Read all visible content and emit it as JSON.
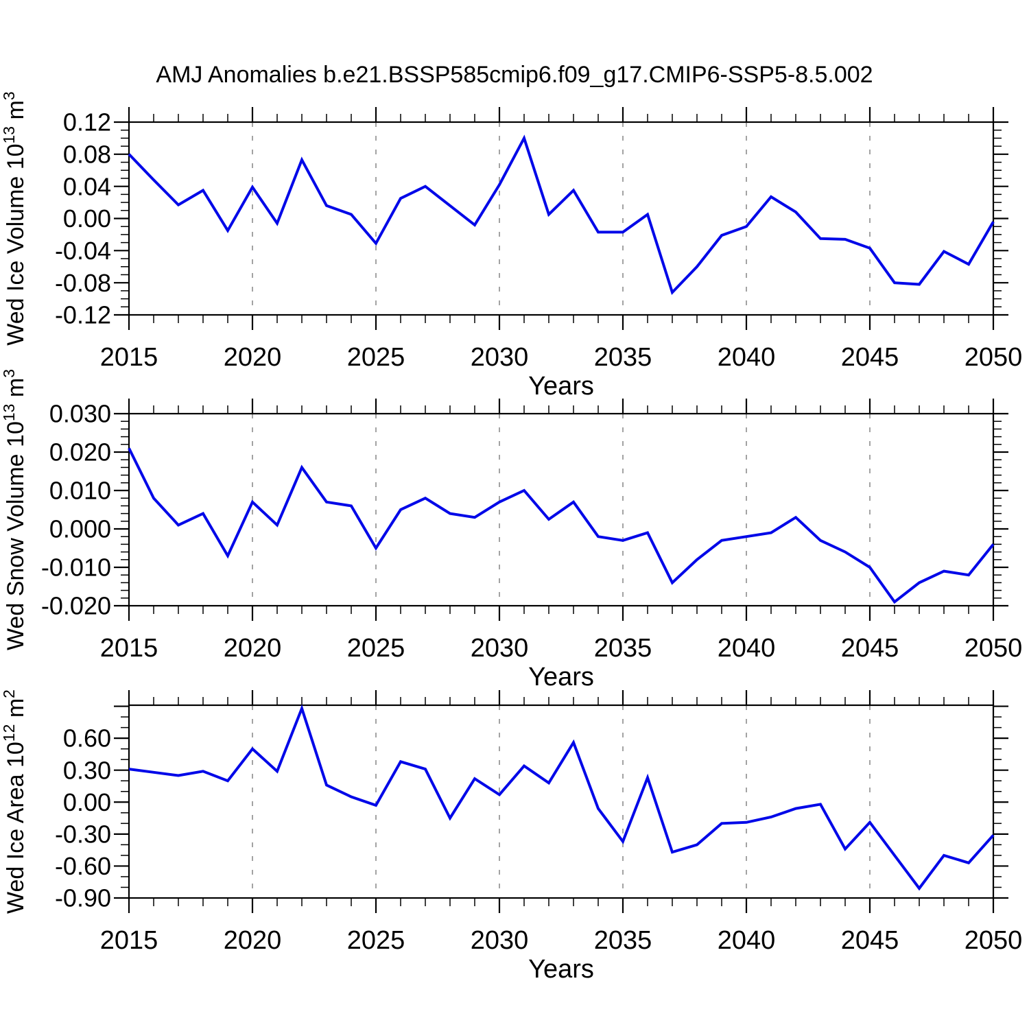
{
  "chart_data": {
    "type": "line",
    "title": "AMJ Anomalies b.e21.BSSP585cmip6.f09_g17.CMIP6-SSP5-8.5.002",
    "xlabel": "Years",
    "x": [
      2015,
      2016,
      2017,
      2018,
      2019,
      2020,
      2021,
      2022,
      2023,
      2024,
      2025,
      2026,
      2027,
      2028,
      2029,
      2030,
      2031,
      2032,
      2033,
      2034,
      2035,
      2036,
      2037,
      2038,
      2039,
      2040,
      2041,
      2042,
      2043,
      2044,
      2045,
      2046,
      2047,
      2048,
      2049,
      2050
    ],
    "xlim": [
      2015,
      2050
    ],
    "x_major_ticks": [
      2015,
      2020,
      2025,
      2030,
      2035,
      2040,
      2045,
      2050
    ],
    "x_gridlines": [
      2020,
      2025,
      2030,
      2035,
      2040,
      2045
    ],
    "line_color": "#0008e8",
    "grid_color": "#999999",
    "axis_color": "#000000",
    "panels": [
      {
        "name": "wed-ice-volume",
        "ylabel_parts": [
          {
            "t": "Wed Ice Volume 10"
          },
          {
            "t": "13",
            "sup": true
          },
          {
            "t": " m"
          },
          {
            "t": "3",
            "sup": true
          }
        ],
        "ylim": [
          -0.12,
          0.12
        ],
        "ytick_major": 0.04,
        "ytick_minor": 0.01,
        "y_decimals": 2,
        "ytick_labels": [
          0.12,
          0.08,
          0.04,
          0.0,
          -0.04,
          -0.08,
          -0.12
        ],
        "values": [
          0.08,
          0.048,
          0.017,
          0.035,
          -0.015,
          0.039,
          -0.006,
          0.073,
          0.016,
          0.005,
          -0.031,
          0.025,
          0.04,
          0.016,
          -0.008,
          0.042,
          0.1,
          0.005,
          0.035,
          -0.017,
          -0.017,
          0.005,
          -0.092,
          -0.06,
          -0.021,
          -0.01,
          0.027,
          0.008,
          -0.025,
          -0.026,
          -0.037,
          -0.08,
          -0.082,
          -0.041,
          -0.057,
          -0.004
        ]
      },
      {
        "name": "wed-snow-volume",
        "ylabel_parts": [
          {
            "t": "Wed Snow Volume 10"
          },
          {
            "t": "13",
            "sup": true
          },
          {
            "t": " m"
          },
          {
            "t": "3",
            "sup": true
          }
        ],
        "ylim": [
          -0.02,
          0.03
        ],
        "ytick_major": 0.01,
        "ytick_minor": 0.002,
        "y_decimals": 3,
        "ytick_labels": [
          0.03,
          0.02,
          0.01,
          0.0,
          -0.01,
          -0.02
        ],
        "values": [
          0.021,
          0.008,
          0.001,
          0.004,
          -0.007,
          0.007,
          0.001,
          0.016,
          0.007,
          0.006,
          -0.005,
          0.005,
          0.008,
          0.004,
          0.003,
          0.007,
          0.01,
          0.0025,
          0.007,
          -0.002,
          -0.003,
          -0.001,
          -0.014,
          -0.008,
          -0.003,
          -0.002,
          -0.001,
          0.003,
          -0.003,
          -0.006,
          -0.01,
          -0.019,
          -0.014,
          -0.011,
          -0.012,
          -0.004
        ]
      },
      {
        "name": "wed-ice-area",
        "ylabel_parts": [
          {
            "t": "Wed Ice Area 10"
          },
          {
            "t": "12",
            "sup": true
          },
          {
            "t": " m"
          },
          {
            "t": "2",
            "sup": true
          }
        ],
        "ylim": [
          -0.9,
          0.91
        ],
        "ytick_major": 0.3,
        "ytick_minor": 0.1,
        "y_decimals": 2,
        "ytick_labels": [
          0.6,
          0.3,
          0.0,
          -0.3,
          -0.6,
          -0.9
        ],
        "values": [
          0.31,
          0.28,
          0.25,
          0.29,
          0.2,
          0.5,
          0.29,
          0.88,
          0.16,
          0.05,
          -0.03,
          0.38,
          0.31,
          -0.15,
          0.22,
          0.07,
          0.34,
          0.18,
          0.56,
          -0.06,
          -0.37,
          0.23,
          -0.47,
          -0.4,
          -0.2,
          -0.19,
          -0.14,
          -0.06,
          -0.02,
          -0.44,
          -0.19,
          -0.5,
          -0.81,
          -0.5,
          -0.57,
          -0.31
        ]
      }
    ]
  }
}
